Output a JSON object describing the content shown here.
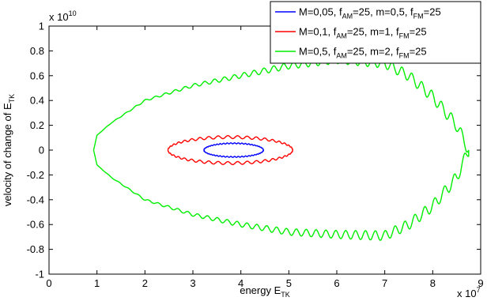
{
  "chart_data": {
    "type": "line",
    "title": "",
    "xlabel": {
      "main": "energy E",
      "sub": "TK"
    },
    "ylabel": {
      "main": "velocity of change of E",
      "sub": "TK"
    },
    "xlim": [
      0,
      9
    ],
    "ylim": [
      -1,
      1
    ],
    "x_multiplier": {
      "base": "x 10",
      "exp": "7"
    },
    "y_multiplier": {
      "base": "x 10",
      "exp": "10"
    },
    "xticks": [
      "0",
      "1",
      "2",
      "3",
      "4",
      "5",
      "6",
      "7",
      "8",
      "9"
    ],
    "yticks": [
      "-1",
      "-0.8",
      "-0.6",
      "-0.4",
      "-0.2",
      "0",
      "0.2",
      "0.4",
      "0.6",
      "0.8",
      "1"
    ],
    "grid": false,
    "legend_position": "top-right",
    "series": [
      {
        "name": "M=0,05, f_AM=25, m=0,5, f_FM=25",
        "legend": {
          "a": "M=0,05, f",
          "b": "AM",
          "c": "=25, m=0,5, f",
          "d": "FM",
          "e": "=25"
        },
        "color": "#0000ff",
        "shape": {
          "cx": 3.85,
          "cy": 0.0,
          "rx": 0.62,
          "ry": 0.055,
          "ripple_amp": 0.004,
          "ripple_count": 50
        }
      },
      {
        "name": "M=0,1, f_AM=25, m=1, f_FM=25",
        "legend": {
          "a": "M=0,1, f",
          "b": "AM",
          "c": "=25, m=1, f",
          "d": "FM",
          "e": "=25"
        },
        "color": "#ff0000",
        "shape": {
          "cx": 3.78,
          "cy": 0.0,
          "rx": 1.3,
          "ry": 0.105,
          "ripple_amp": 0.012,
          "ripple_count": 40
        }
      },
      {
        "name": "M=0,5, f_AM=25, m=2, f_FM=25",
        "legend": {
          "a": "M=0,5, f",
          "b": "AM",
          "c": "=25, m=2, f",
          "d": "FM",
          "e": "=25"
        },
        "color": "#00ee00",
        "shape": {
          "upper": [
            [
              0.93,
              0.0
            ],
            [
              1.0,
              0.12
            ],
            [
              1.3,
              0.22
            ],
            [
              2.0,
              0.4
            ],
            [
              3.0,
              0.52
            ],
            [
              4.0,
              0.6
            ],
            [
              5.0,
              0.68
            ],
            [
              6.0,
              0.73
            ],
            [
              7.0,
              0.7
            ],
            [
              7.5,
              0.6
            ],
            [
              8.0,
              0.43
            ],
            [
              8.5,
              0.2
            ],
            [
              8.75,
              0.0
            ]
          ],
          "lower": [
            [
              0.93,
              0.0
            ],
            [
              1.0,
              -0.12
            ],
            [
              1.3,
              -0.22
            ],
            [
              2.0,
              -0.4
            ],
            [
              3.0,
              -0.52
            ],
            [
              4.0,
              -0.6
            ],
            [
              5.0,
              -0.66
            ],
            [
              6.0,
              -0.68
            ],
            [
              7.0,
              -0.69
            ],
            [
              7.5,
              -0.6
            ],
            [
              8.0,
              -0.45
            ],
            [
              8.5,
              -0.22
            ],
            [
              8.75,
              0.0
            ]
          ],
          "ripple_amp": 0.05,
          "ripple_count": 38
        }
      }
    ]
  }
}
